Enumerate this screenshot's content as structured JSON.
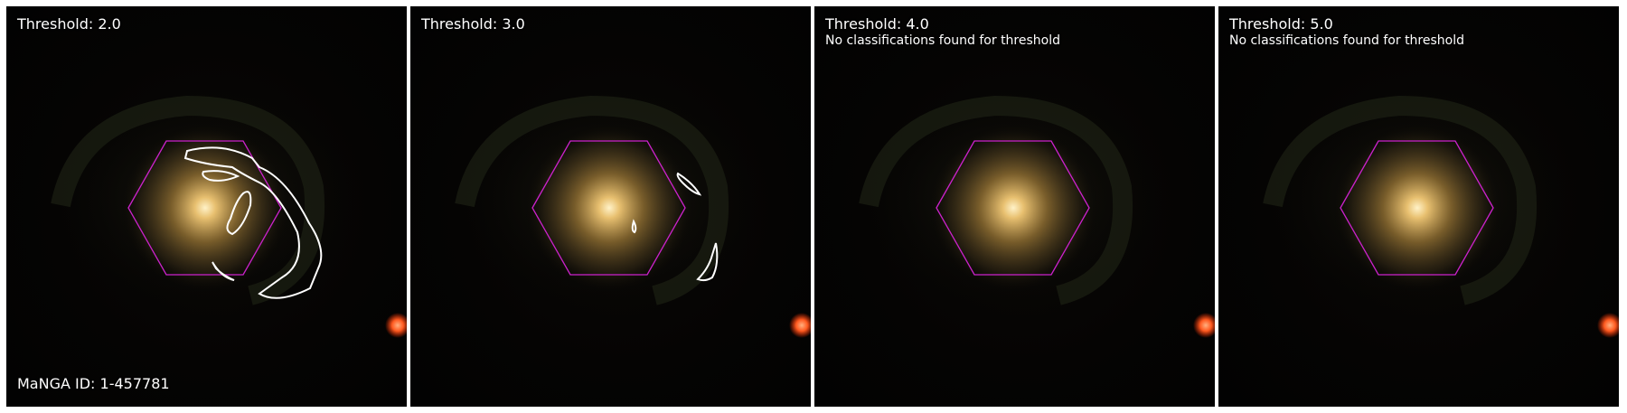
{
  "figure": {
    "galaxy_id": "MaNGA ID: 1-457781",
    "colors": {
      "hexagon": "#cc22cc",
      "contour": "#ffffff",
      "background": "#050403",
      "separator": "#ffffff"
    },
    "panels": [
      {
        "title": "Threshold: 2.0",
        "note": "",
        "contours_shown": true
      },
      {
        "title": "Threshold: 3.0",
        "note": "",
        "contours_shown": true
      },
      {
        "title": "Threshold: 4.0",
        "note": "No classifications found for threshold",
        "contours_shown": false
      },
      {
        "title": "Threshold: 5.0",
        "note": "No classifications found for threshold",
        "contours_shown": false
      }
    ]
  }
}
